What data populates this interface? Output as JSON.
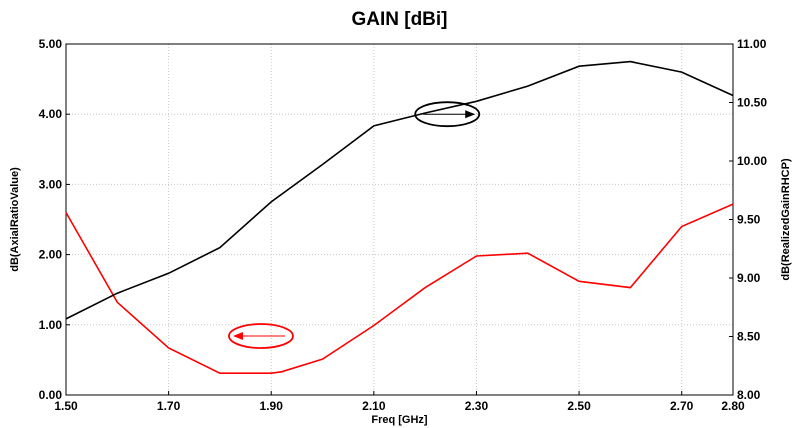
{
  "chart_data": {
    "type": "line",
    "title": "GAIN [dBi]",
    "xlabel": "Freq [GHz]",
    "ylabel_left": "dB(AxialRatioValue)",
    "ylabel_right": "dB(RealizedGainRHCP)",
    "xlim": [
      1.5,
      2.8
    ],
    "ylim_left": [
      0.0,
      5.0
    ],
    "ylim_right": [
      8.0,
      11.0
    ],
    "x_ticks": [
      "1.50",
      "1.70",
      "1.90",
      "2.10",
      "2.30",
      "2.50",
      "2.70",
      "2.80"
    ],
    "y_left_ticks": [
      "0.00",
      "1.00",
      "2.00",
      "3.00",
      "4.00",
      "5.00"
    ],
    "y_right_ticks": [
      "8.00",
      "8.50",
      "9.00",
      "9.50",
      "10.00",
      "10.50",
      "11.00"
    ],
    "grid": true,
    "series": [
      {
        "axis": "left",
        "color": "#ff0000",
        "x": [
          1.5,
          1.6,
          1.7,
          1.8,
          1.9,
          1.92,
          2.0,
          2.1,
          2.2,
          2.3,
          2.4,
          2.5,
          2.6,
          2.7,
          2.8
        ],
        "y": [
          2.6,
          1.32,
          0.67,
          0.31,
          0.31,
          0.33,
          0.51,
          0.99,
          1.53,
          1.98,
          2.02,
          1.62,
          1.53,
          2.4,
          2.72
        ]
      },
      {
        "axis": "right",
        "color": "#000000",
        "x": [
          1.5,
          1.6,
          1.7,
          1.8,
          1.9,
          2.0,
          2.1,
          2.2,
          2.3,
          2.4,
          2.5,
          2.6,
          2.7,
          2.8
        ],
        "y": [
          8.65,
          8.87,
          9.04,
          9.26,
          9.65,
          9.97,
          10.3,
          10.41,
          10.51,
          10.64,
          10.81,
          10.85,
          10.76,
          10.56
        ]
      }
    ],
    "annotations": [
      {
        "type": "ellipse-arrow",
        "direction": "right",
        "color": "#000000",
        "target_series": "right"
      },
      {
        "type": "ellipse-arrow",
        "direction": "left",
        "color": "#ff0000",
        "target_series": "left"
      }
    ]
  }
}
